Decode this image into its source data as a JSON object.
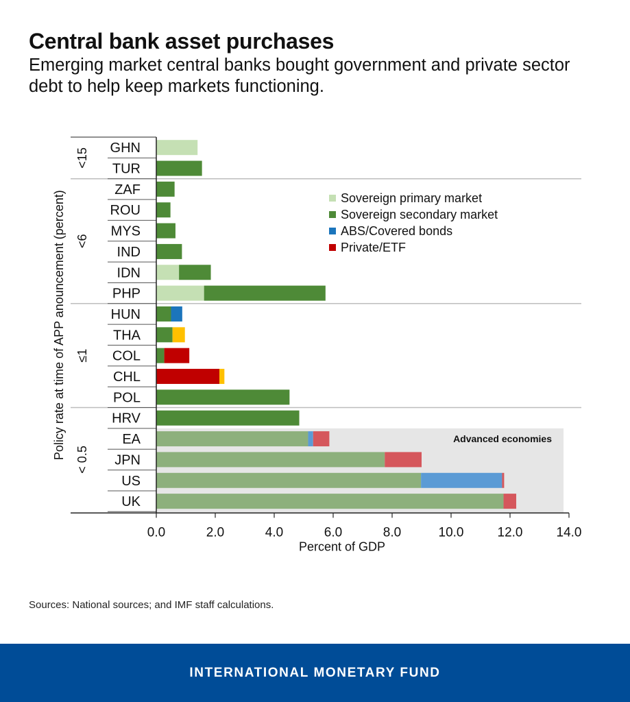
{
  "header": {
    "title": "Central bank asset purchases",
    "subtitle": "Emerging market central banks bought government and private sector debt to help keep markets functioning."
  },
  "chart_data": {
    "type": "bar",
    "orientation": "horizontal",
    "stacked": true,
    "xlabel": "Percent of GDP",
    "ylabel": "Policy rate at time of APP anouncement (percent)",
    "xlim": [
      0,
      14
    ],
    "xticks": [
      "0.0",
      "2.0",
      "4.0",
      "6.0",
      "8.0",
      "10.0",
      "12.0",
      "14.0"
    ],
    "categories": [
      "GHN",
      "TUR",
      "ZAF",
      "ROU",
      "MYS",
      "IND",
      "IDN",
      "PHP",
      "HUN",
      "THA",
      "COL",
      "CHL",
      "POL",
      "HRV",
      "EA",
      "JPN",
      "US",
      "UK"
    ],
    "groups": [
      {
        "label": "<15",
        "count": 2
      },
      {
        "label": "<6",
        "count": 6
      },
      {
        "label": "≤1",
        "count": 5
      },
      {
        "label": "< 0.5",
        "count": 5
      }
    ],
    "series": [
      {
        "name": "Sovereign primary market",
        "color": "#C5E0B4",
        "values": [
          1.4,
          0,
          0,
          0,
          0,
          0,
          0.77,
          1.62,
          0,
          0,
          0,
          0,
          0,
          0,
          0,
          0,
          0,
          0
        ]
      },
      {
        "name": "Sovereign secondary market",
        "color": "#4E8A37",
        "values": [
          0,
          1.55,
          0.62,
          0.48,
          0.65,
          0.87,
          1.08,
          4.12,
          0.5,
          0.55,
          0.27,
          0,
          4.52,
          4.85,
          5.15,
          7.75,
          8.98,
          11.78
        ]
      },
      {
        "name": "ABS/Covered bonds",
        "color": "#1B75BC",
        "values": [
          0,
          0,
          0,
          0,
          0,
          0,
          0,
          0,
          0.38,
          0,
          0,
          0,
          0,
          0,
          0.17,
          0,
          2.75,
          0
        ]
      },
      {
        "name": "Private/ETF",
        "color": "#C00000",
        "values": [
          0,
          0,
          0,
          0,
          0,
          0,
          0,
          0,
          0,
          0,
          0.85,
          2.14,
          0,
          0,
          0.55,
          1.25,
          0.07,
          0.43
        ]
      },
      {
        "name": "",
        "color": "#FFC000",
        "values": [
          0,
          0,
          0,
          0,
          0,
          0,
          0,
          0,
          0,
          0.42,
          0,
          0.17,
          0,
          0,
          0,
          0,
          0,
          0
        ]
      }
    ],
    "advanced_economies": {
      "label": "Advanced economies",
      "categories": [
        "EA",
        "JPN",
        "US",
        "UK"
      ],
      "colors": [
        "#8DB07C",
        "#8DB07C",
        "#5B9BD5",
        "#D5575C"
      ]
    },
    "legend_position": "top-right",
    "grid": false
  },
  "source": "Sources: National sources; and IMF staff calculations.",
  "footer": {
    "brand": "INTERNATIONAL MONETARY FUND"
  }
}
